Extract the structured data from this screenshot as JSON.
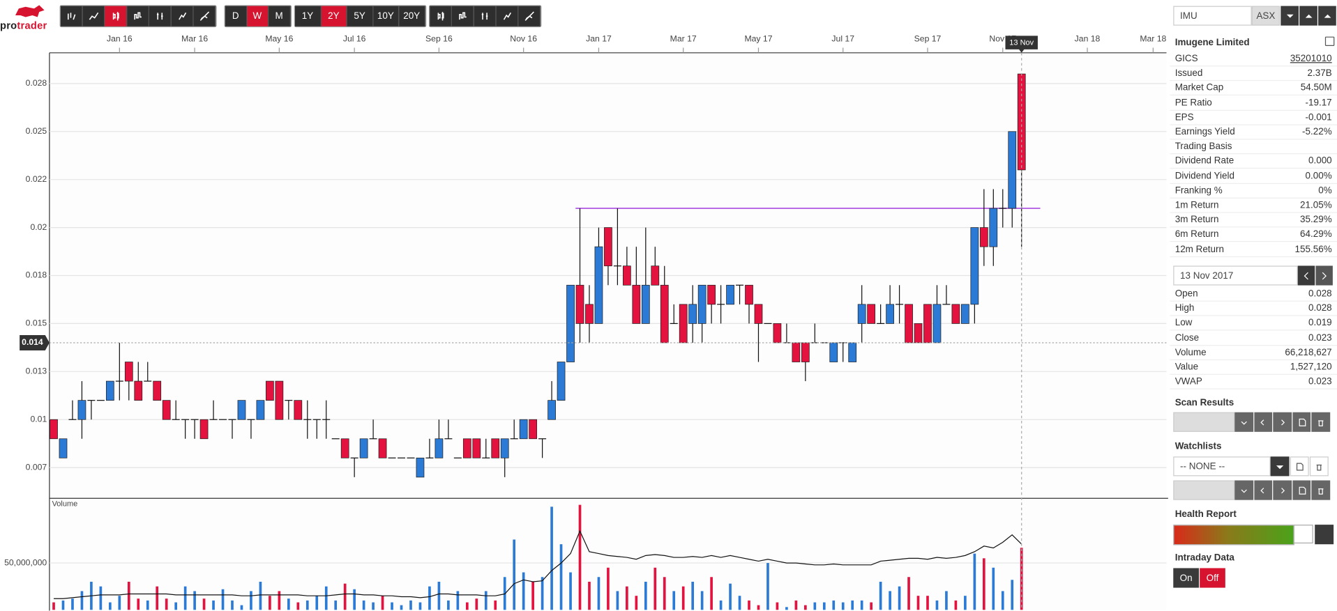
{
  "logo": [
    "pro",
    "trader"
  ],
  "toolbar": {
    "intervals": [
      "D",
      "W",
      "M"
    ],
    "active_interval": 1,
    "ranges": [
      "1Y",
      "2Y",
      "5Y",
      "10Y",
      "20Y"
    ],
    "active_range": 1
  },
  "chart_data": {
    "type": "candlestick",
    "categories": [
      null,
      null,
      null,
      null,
      null,
      null,
      null,
      "Jan 16",
      null,
      null,
      null,
      null,
      null,
      null,
      null,
      "Mar 16",
      null,
      null,
      null,
      null,
      null,
      null,
      null,
      null,
      "May 16",
      null,
      null,
      null,
      null,
      null,
      null,
      null,
      "Jul 16",
      null,
      null,
      null,
      null,
      null,
      null,
      null,
      null,
      "Sep 16",
      null,
      null,
      null,
      null,
      null,
      null,
      null,
      null,
      "Nov 16",
      null,
      null,
      null,
      null,
      null,
      null,
      null,
      "Jan 17",
      null,
      null,
      null,
      null,
      null,
      null,
      null,
      null,
      "Mar 17",
      null,
      null,
      null,
      null,
      null,
      null,
      null,
      "May 17",
      null,
      null,
      null,
      null,
      null,
      null,
      null,
      null,
      "Jul 17",
      null,
      null,
      null,
      null,
      null,
      null,
      null,
      null,
      "Sep 17",
      null,
      null,
      null,
      null,
      null,
      null,
      null,
      "Nov 17",
      null,
      null,
      null,
      null,
      null,
      null,
      null,
      null,
      "Jan 18",
      null,
      null,
      null,
      null,
      null,
      null,
      "Mar 18"
    ],
    "open": [
      0.01,
      0.008,
      0.01,
      0.01,
      0.011,
      0.011,
      0.011,
      0.012,
      0.013,
      0.012,
      0.012,
      0.012,
      0.011,
      0.01,
      0.01,
      0.01,
      0.01,
      0.01,
      0.01,
      0.01,
      0.01,
      0.01,
      0.01,
      0.012,
      0.012,
      0.011,
      0.011,
      0.01,
      0.01,
      0.01,
      0.009,
      0.009,
      0.008,
      0.008,
      0.009,
      0.009,
      0.008,
      0.008,
      0.008,
      0.007,
      0.008,
      0.008,
      0.009,
      0.008,
      0.009,
      0.009,
      0.008,
      0.009,
      0.008,
      0.009,
      0.009,
      0.01,
      0.009,
      0.01,
      0.011,
      0.013,
      0.017,
      0.016,
      0.015,
      0.02,
      0.018,
      0.018,
      0.017,
      0.015,
      0.018,
      0.017,
      0.015,
      0.016,
      0.015,
      0.015,
      0.017,
      0.016,
      0.016,
      0.017,
      0.017,
      0.016,
      0.015,
      0.015,
      0.014,
      0.014,
      0.014,
      0.014,
      0.014,
      0.013,
      0.014,
      0.013,
      0.015,
      0.016,
      0.015,
      0.015,
      0.016,
      0.016,
      0.015,
      0.016,
      0.014,
      0.016,
      0.016,
      0.015,
      0.016,
      0.02,
      0.019,
      0.021,
      0.021,
      0.028,
      null,
      null,
      null,
      null,
      null,
      null,
      null,
      null,
      null,
      null,
      null,
      null,
      null,
      null
    ],
    "high": [
      0.01,
      0.009,
      0.011,
      0.012,
      0.011,
      0.011,
      0.012,
      0.014,
      0.013,
      0.013,
      0.013,
      0.012,
      0.011,
      0.011,
      0.01,
      0.01,
      0.01,
      0.011,
      0.01,
      0.01,
      0.011,
      0.01,
      0.011,
      0.012,
      0.012,
      0.011,
      0.011,
      0.011,
      0.01,
      0.011,
      0.009,
      0.009,
      0.008,
      0.009,
      0.01,
      0.009,
      0.008,
      0.008,
      0.008,
      0.008,
      0.009,
      0.01,
      0.01,
      0.008,
      0.009,
      0.009,
      0.009,
      0.009,
      0.009,
      0.01,
      0.01,
      0.01,
      0.009,
      0.012,
      0.013,
      0.017,
      0.021,
      0.017,
      0.02,
      0.02,
      0.021,
      0.019,
      0.019,
      0.02,
      0.019,
      0.018,
      0.016,
      0.016,
      0.017,
      0.017,
      0.017,
      0.017,
      0.017,
      0.017,
      0.017,
      0.016,
      0.015,
      0.015,
      0.015,
      0.014,
      0.014,
      0.015,
      0.014,
      0.014,
      0.014,
      0.014,
      0.017,
      0.016,
      0.016,
      0.017,
      0.017,
      0.016,
      0.015,
      0.016,
      0.017,
      0.017,
      0.016,
      0.016,
      0.02,
      0.022,
      0.022,
      0.022,
      0.025,
      0.028,
      null,
      null,
      null,
      null,
      null,
      null,
      null,
      null,
      null,
      null,
      null,
      null,
      null,
      null
    ],
    "low": [
      0.009,
      0.008,
      0.01,
      0.009,
      0.01,
      0.011,
      0.011,
      0.011,
      0.011,
      0.011,
      0.012,
      0.011,
      0.01,
      0.01,
      0.009,
      0.009,
      0.009,
      0.01,
      0.01,
      0.009,
      0.01,
      0.009,
      0.01,
      0.011,
      0.01,
      0.01,
      0.01,
      0.009,
      0.009,
      0.009,
      0.009,
      0.008,
      0.007,
      0.008,
      0.009,
      0.008,
      0.008,
      0.008,
      0.008,
      0.007,
      0.008,
      0.008,
      0.009,
      0.008,
      0.008,
      0.008,
      0.008,
      0.008,
      0.007,
      0.009,
      0.009,
      0.009,
      0.008,
      0.01,
      0.011,
      0.013,
      0.014,
      0.014,
      0.015,
      0.017,
      0.017,
      0.017,
      0.015,
      0.015,
      0.017,
      0.014,
      0.015,
      0.014,
      0.014,
      0.014,
      0.015,
      0.015,
      0.016,
      0.016,
      0.015,
      0.013,
      0.015,
      0.014,
      0.014,
      0.013,
      0.012,
      0.014,
      0.014,
      0.013,
      0.013,
      0.013,
      0.014,
      0.015,
      0.015,
      0.015,
      0.015,
      0.014,
      0.014,
      0.014,
      0.014,
      0.016,
      0.015,
      0.015,
      0.015,
      0.018,
      0.018,
      0.02,
      0.02,
      0.019,
      null,
      null,
      null,
      null,
      null,
      null,
      null,
      null,
      null,
      null,
      null,
      null,
      null,
      null
    ],
    "close": [
      0.009,
      0.009,
      0.01,
      0.011,
      0.011,
      0.011,
      0.012,
      0.012,
      0.012,
      0.011,
      0.012,
      0.011,
      0.01,
      0.01,
      0.01,
      0.01,
      0.009,
      0.01,
      0.01,
      0.01,
      0.011,
      0.01,
      0.011,
      0.011,
      0.01,
      0.011,
      0.01,
      0.01,
      0.01,
      0.01,
      0.009,
      0.008,
      0.008,
      0.009,
      0.009,
      0.008,
      0.008,
      0.008,
      0.008,
      0.008,
      0.008,
      0.009,
      0.009,
      0.008,
      0.008,
      0.008,
      0.008,
      0.008,
      0.009,
      0.009,
      0.01,
      0.009,
      0.009,
      0.011,
      0.013,
      0.017,
      0.015,
      0.015,
      0.019,
      0.018,
      0.018,
      0.017,
      0.015,
      0.017,
      0.017,
      0.014,
      0.015,
      0.014,
      0.016,
      0.017,
      0.016,
      0.016,
      0.017,
      0.017,
      0.016,
      0.015,
      0.015,
      0.014,
      0.014,
      0.013,
      0.013,
      0.014,
      0.014,
      0.014,
      0.014,
      0.014,
      0.016,
      0.015,
      0.015,
      0.016,
      0.016,
      0.014,
      0.014,
      0.014,
      0.016,
      0.016,
      0.015,
      0.016,
      0.02,
      0.019,
      0.021,
      0.021,
      0.025,
      0.023,
      null,
      null,
      null,
      null,
      null,
      null,
      null,
      null,
      null,
      null,
      null,
      null,
      null,
      null
    ],
    "up_color": "#2b7bd6",
    "down_color": "#e3123f",
    "ylim": [
      0.0059,
      0.0291
    ],
    "yticks": [
      {
        "value": 0.0075,
        "label": "0.007"
      },
      0.01,
      {
        "value": 0.0125,
        "label": "0.013"
      },
      0.015,
      {
        "value": 0.0175,
        "label": "0.018"
      },
      0.02,
      {
        "value": 0.0225,
        "label": "0.022"
      },
      0.025,
      {
        "value": 0.0275,
        "label": "0.028"
      }
    ],
    "grid": true,
    "hline": {
      "value": 0.021,
      "color": "#a23bdc"
    },
    "crosshair": {
      "y": 0.014,
      "x_label": "13 Nov"
    },
    "volume": {
      "label": "Volume",
      "values": [
        8000000.0,
        10000000.0,
        12000000.0,
        20000000.0,
        30000000.0,
        25000000.0,
        8000000.0,
        15000000.0,
        30000000.0,
        12000000.0,
        10000000.0,
        25000000.0,
        12000000.0,
        8000000.0,
        25000000.0,
        20000000.0,
        12000000.0,
        10000000.0,
        22000000.0,
        10000000.0,
        5000000.0,
        20000000.0,
        30000000.0,
        15000000.0,
        20000000.0,
        12000000.0,
        8000000.0,
        10000000.0,
        15000000.0,
        25000000.0,
        10000000.0,
        28000000.0,
        22000000.0,
        10000000.0,
        8000000.0,
        15000000.0,
        8000000.0,
        5000000.0,
        10000000.0,
        8000000.0,
        25000000.0,
        30000000.0,
        10000000.0,
        20000000.0,
        8000000.0,
        12000000.0,
        20000000.0,
        10000000.0,
        35000000.0,
        75000000.0,
        40000000.0,
        30000000.0,
        35000000.0,
        110000000.0,
        70000000.0,
        40000000.0,
        112000000.0,
        30000000.0,
        35000000.0,
        45000000.0,
        20000000.0,
        25000000.0,
        15000000.0,
        30000000.0,
        45000000.0,
        35000000.0,
        20000000.0,
        25000000.0,
        30000000.0,
        20000000.0,
        35000000.0,
        10000000.0,
        28000000.0,
        15000000.0,
        10000000.0,
        5000000.0,
        50000000.0,
        8000000.0,
        3000000.0,
        10000000.0,
        5000000.0,
        8000000.0,
        8000000.0,
        10000000.0,
        8000000.0,
        10000000.0,
        10000000.0,
        8000000.0,
        30000000.0,
        20000000.0,
        25000000.0,
        35000000.0,
        15000000.0,
        15000000.0,
        10000000.0,
        20000000.0,
        10000000.0,
        15000000.0,
        60000000.0,
        55000000.0,
        45000000.0,
        20000000.0,
        32000000.0,
        66218627,
        null,
        null,
        null,
        null,
        null,
        null,
        null,
        null,
        null,
        null,
        null,
        null,
        null,
        null
      ],
      "average": [
        12000000.0,
        12000000.0,
        13000000.0,
        14000000.0,
        15000000.0,
        16000000.0,
        16000000.0,
        16000000.0,
        17000000.0,
        17000000.0,
        17000000.0,
        17000000.0,
        17000000.0,
        16000000.0,
        16000000.0,
        16000000.0,
        16000000.0,
        16000000.0,
        16000000.0,
        16000000.0,
        15000000.0,
        15000000.0,
        16000000.0,
        16000000.0,
        16000000.0,
        16000000.0,
        16000000.0,
        15000000.0,
        15000000.0,
        15000000.0,
        16000000.0,
        17000000.0,
        17000000.0,
        16000000.0,
        16000000.0,
        15000000.0,
        15000000.0,
        14000000.0,
        14000000.0,
        13000000.0,
        14000000.0,
        17000000.0,
        17000000.0,
        16000000.0,
        16000000.0,
        16000000.0,
        15000000.0,
        15000000.0,
        17000000.0,
        28000000.0,
        32000000.0,
        30000000.0,
        31000000.0,
        42000000.0,
        50000000.0,
        60000000.0,
        84000000.0,
        62000000.0,
        60000000.0,
        58000000.0,
        57000000.0,
        56000000.0,
        54000000.0,
        58000000.0,
        59000000.0,
        58000000.0,
        56000000.0,
        56000000.0,
        57000000.0,
        56000000.0,
        58000000.0,
        56000000.0,
        58000000.0,
        56000000.0,
        54000000.0,
        52000000.0,
        54000000.0,
        52000000.0,
        50000000.0,
        50000000.0,
        49000000.0,
        48000000.0,
        48000000.0,
        49000000.0,
        48000000.0,
        48000000.0,
        48000000.0,
        48000000.0,
        52000000.0,
        53000000.0,
        54000000.0,
        55000000.0,
        55000000.0,
        54000000.0,
        56000000.0,
        55000000.0,
        56000000.0,
        58000000.0,
        62000000.0,
        68000000.0,
        66000000.0,
        72000000.0,
        80000000.0,
        70000000.0,
        null,
        null,
        null,
        null,
        null,
        null,
        null,
        null,
        null,
        null,
        null,
        null,
        null,
        null
      ],
      "ylim": [
        0,
        119000000
      ],
      "yticks": [
        {
          "value": 50000000,
          "label": "50,000,000"
        }
      ]
    }
  },
  "sidebar": {
    "symbol": "IMU",
    "exchange": "ASX",
    "company": "Imugene Limited",
    "fundamentals": [
      [
        "GICS",
        "35201010"
      ],
      [
        "Issued",
        "2.37B"
      ],
      [
        "Market Cap",
        "54.50M"
      ],
      [
        "PE Ratio",
        "-19.17"
      ],
      [
        "EPS",
        "-0.001"
      ],
      [
        "Earnings Yield",
        "-5.22%"
      ],
      [
        "Trading Basis"
      ],
      [
        "Dividend Rate",
        "0.000"
      ],
      [
        "Dividend Yield",
        "0.00%"
      ],
      [
        "Franking %",
        "0%"
      ],
      [
        "1m Return",
        "21.05%"
      ],
      [
        "3m Return",
        "35.29%"
      ],
      [
        "6m Return",
        "64.29%"
      ],
      [
        "12m Return",
        "155.56%"
      ]
    ],
    "date": "13 Nov 2017",
    "quote": [
      [
        "Open",
        "0.028"
      ],
      [
        "High",
        "0.028"
      ],
      [
        "Low",
        "0.019"
      ],
      [
        "Close",
        "0.023"
      ],
      [
        "Volume",
        "66,218,627"
      ],
      [
        "Value",
        "1,527,120"
      ],
      [
        "VWAP",
        "0.023"
      ]
    ],
    "scan_results": "Scan Results",
    "watchlists": "Watchlists",
    "watchlist_value": "-- NONE --",
    "health_report": "Health Report",
    "intraday": "Intraday Data",
    "intraday_options": [
      "On",
      "Off"
    ],
    "intraday_active": 1
  }
}
